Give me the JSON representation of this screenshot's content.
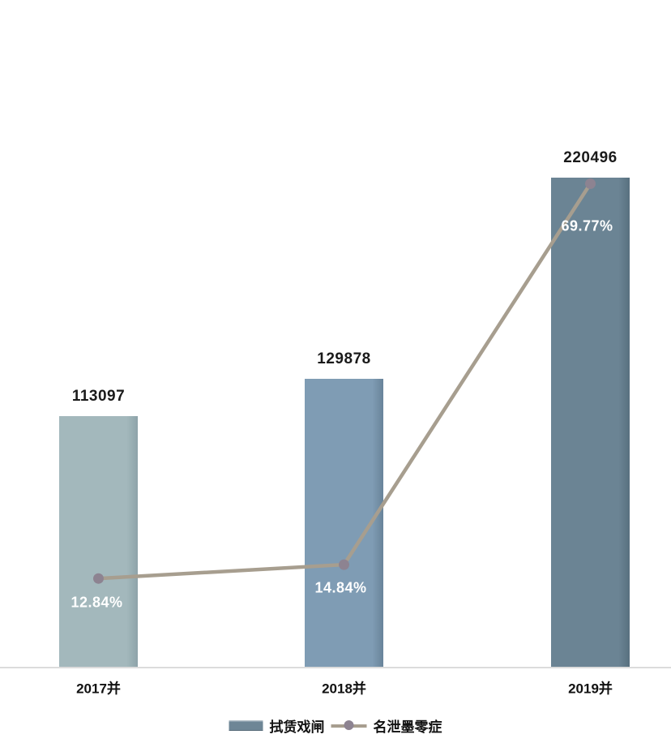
{
  "chart_data": {
    "type": "bar",
    "combo": "bar + line on secondary percent axis",
    "title": "",
    "xlabel": "",
    "ylabel": "",
    "categories": [
      "2017并",
      "2018并",
      "2019并"
    ],
    "series": [
      {
        "type": "bar",
        "name": "拭赁戏闸",
        "values": [
          113097,
          129878,
          220496
        ],
        "data_labels": [
          "113097",
          "129878",
          "220496"
        ],
        "bar_colors": [
          "#a3b8bc",
          "#7f9cb4",
          "#6b8494"
        ],
        "bar_edge_colors": [
          "#8da3a9",
          "#69849a",
          "#58707f"
        ],
        "label_color": "#1a1a1a",
        "legend_swatch_color": "#6e8696"
      },
      {
        "type": "line",
        "name": "名泄墨零症",
        "values": [
          12.84,
          14.84,
          69.77
        ],
        "data_labels": [
          "12.84%",
          "14.84%",
          "69.77%"
        ],
        "line_color": "#a79e8f",
        "marker_color": "#8d8391",
        "label_color": "#ffffff"
      }
    ],
    "bar_axis": {
      "min": 0,
      "max_value_shown": 220496,
      "ticks_visible": false
    },
    "line_axis": {
      "unit": "%",
      "min": 0,
      "ticks_visible": false
    },
    "grid": false,
    "legend_position": "bottom-center",
    "background_color": "#ffffff",
    "axis_line_color": "#dcdcdc"
  }
}
